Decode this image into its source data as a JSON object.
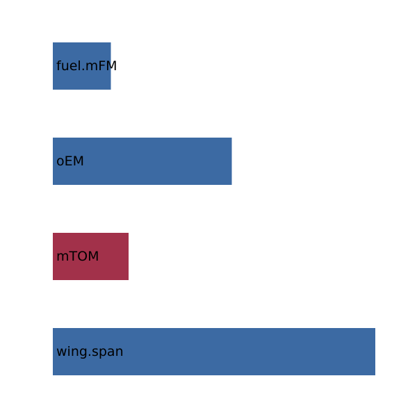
{
  "chart_data": {
    "type": "bar",
    "orientation": "horizontal",
    "title": "",
    "xlabel": "",
    "ylabel": "",
    "axes_visible": false,
    "grid": false,
    "xlim": [
      0,
      1
    ],
    "categories": [
      "fuel.mFM",
      "oEM",
      "mTOM",
      "wing.span"
    ],
    "values": [
      0.18,
      0.555,
      0.235,
      1.0
    ],
    "colors": [
      "#3c6aa3",
      "#3c6aa3",
      "#a2314a",
      "#3c6aa3"
    ]
  }
}
